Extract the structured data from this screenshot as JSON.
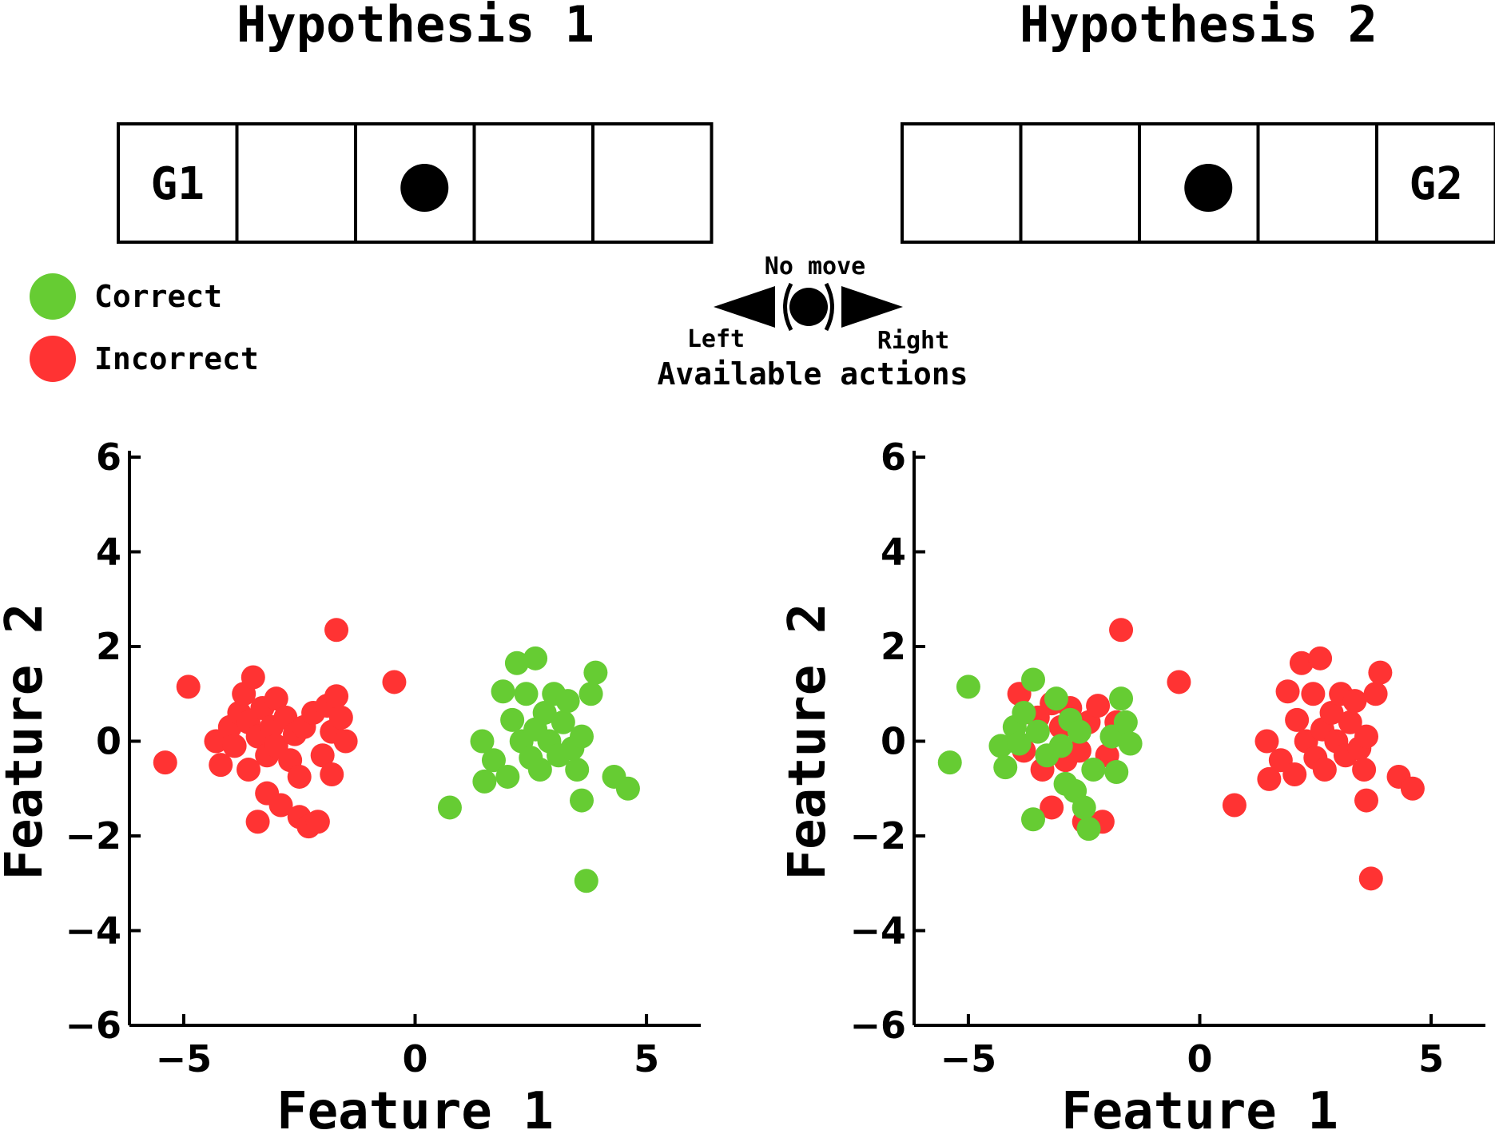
{
  "header": {
    "left_title": "Hypothesis 1",
    "right_title": "Hypothesis 2"
  },
  "gridworlds": [
    {
      "cells": 5,
      "goal_label": "G1",
      "goal_cell": 0,
      "agent_cell": 2
    },
    {
      "cells": 5,
      "goal_label": "G2",
      "goal_cell": 4,
      "agent_cell": 2
    }
  ],
  "legend": {
    "items": [
      {
        "label": "Correct",
        "color": "#66cc33"
      },
      {
        "label": "Incorrect",
        "color": "#ff3333"
      }
    ]
  },
  "actions": {
    "title": "Available actions",
    "no_move": "No move",
    "left": "Left",
    "right": "Right"
  },
  "chart_data": [
    {
      "type": "scatter",
      "xlabel": "Feature 1",
      "ylabel": "Feature 2",
      "xlim": [
        -6,
        6
      ],
      "ylim": [
        -6,
        6
      ],
      "xticks": [
        -5,
        0,
        5
      ],
      "yticks": [
        6,
        4,
        2,
        0,
        -2,
        -4,
        -6
      ],
      "series": [
        {
          "color": "#ff3333",
          "points": [
            [
              -5.4,
              -0.45
            ],
            [
              -4.9,
              1.15
            ],
            [
              -4.3,
              0.0
            ],
            [
              -4.2,
              -0.5
            ],
            [
              -4.0,
              0.3
            ],
            [
              -3.9,
              -0.1
            ],
            [
              -3.8,
              0.6
            ],
            [
              -3.7,
              1.0
            ],
            [
              -3.6,
              0.4
            ],
            [
              -3.6,
              -0.6
            ],
            [
              -3.5,
              1.35
            ],
            [
              -3.4,
              0.1
            ],
            [
              -3.4,
              -1.7
            ],
            [
              -3.3,
              0.7
            ],
            [
              -3.2,
              -0.3
            ],
            [
              -3.2,
              -1.1
            ],
            [
              -3.1,
              0.3
            ],
            [
              -3.0,
              -0.1
            ],
            [
              -3.0,
              0.9
            ],
            [
              -2.9,
              -1.35
            ],
            [
              -2.8,
              0.5
            ],
            [
              -2.7,
              -0.4
            ],
            [
              -2.6,
              0.15
            ],
            [
              -2.5,
              -0.75
            ],
            [
              -2.5,
              -1.6
            ],
            [
              -2.4,
              0.3
            ],
            [
              -2.3,
              -1.8
            ],
            [
              -2.2,
              0.6
            ],
            [
              -2.1,
              -1.7
            ],
            [
              -2.0,
              -0.3
            ],
            [
              -1.9,
              0.75
            ],
            [
              -1.8,
              0.2
            ],
            [
              -1.8,
              -0.7
            ],
            [
              -1.7,
              0.95
            ],
            [
              -1.6,
              0.5
            ],
            [
              -1.5,
              0.0
            ],
            [
              -1.7,
              2.35
            ],
            [
              -0.45,
              1.25
            ]
          ]
        },
        {
          "color": "#66cc33",
          "points": [
            [
              0.75,
              -1.4
            ],
            [
              1.45,
              0.0
            ],
            [
              1.5,
              -0.85
            ],
            [
              1.7,
              -0.4
            ],
            [
              1.9,
              1.05
            ],
            [
              2.0,
              -0.75
            ],
            [
              2.1,
              0.45
            ],
            [
              2.2,
              1.65
            ],
            [
              2.3,
              0.0
            ],
            [
              2.4,
              1.0
            ],
            [
              2.5,
              -0.35
            ],
            [
              2.6,
              1.75
            ],
            [
              2.6,
              0.25
            ],
            [
              2.7,
              -0.6
            ],
            [
              2.8,
              0.6
            ],
            [
              2.9,
              0.0
            ],
            [
              3.0,
              1.0
            ],
            [
              3.1,
              -0.3
            ],
            [
              3.2,
              0.4
            ],
            [
              3.3,
              0.85
            ],
            [
              3.4,
              -0.15
            ],
            [
              3.5,
              -0.6
            ],
            [
              3.6,
              0.1
            ],
            [
              3.6,
              -1.25
            ],
            [
              3.7,
              -2.95
            ],
            [
              3.8,
              1.0
            ],
            [
              3.9,
              1.45
            ],
            [
              4.3,
              -0.75
            ],
            [
              4.6,
              -1.0
            ]
          ]
        }
      ]
    },
    {
      "type": "scatter",
      "xlabel": "Feature 1",
      "ylabel": "Feature 2",
      "xlim": [
        -6,
        6
      ],
      "ylim": [
        -6,
        6
      ],
      "xticks": [
        -5,
        0,
        5
      ],
      "yticks": [
        6,
        4,
        2,
        0,
        -2,
        -4,
        -6
      ],
      "series": [
        {
          "color": "#ff3333",
          "points": [
            [
              -3.9,
              1.0
            ],
            [
              -3.8,
              -0.2
            ],
            [
              -3.5,
              0.5
            ],
            [
              -3.4,
              -0.6
            ],
            [
              -3.2,
              0.8
            ],
            [
              -3.2,
              -1.4
            ],
            [
              -3.0,
              0.3
            ],
            [
              -2.9,
              -0.4
            ],
            [
              -2.8,
              0.7
            ],
            [
              -2.6,
              -0.2
            ],
            [
              -2.5,
              -1.7
            ],
            [
              -2.4,
              0.4
            ],
            [
              -2.2,
              0.75
            ],
            [
              -2.1,
              -1.7
            ],
            [
              -2.0,
              -0.3
            ],
            [
              -1.8,
              0.4
            ],
            [
              -1.7,
              2.35
            ],
            [
              -0.45,
              1.25
            ],
            [
              0.75,
              -1.35
            ],
            [
              1.45,
              0.0
            ],
            [
              1.5,
              -0.8
            ],
            [
              1.75,
              -0.4
            ],
            [
              1.9,
              1.05
            ],
            [
              2.05,
              -0.7
            ],
            [
              2.1,
              0.45
            ],
            [
              2.2,
              1.65
            ],
            [
              2.3,
              0.0
            ],
            [
              2.45,
              1.0
            ],
            [
              2.5,
              -0.35
            ],
            [
              2.6,
              1.75
            ],
            [
              2.65,
              0.25
            ],
            [
              2.7,
              -0.6
            ],
            [
              2.85,
              0.6
            ],
            [
              2.95,
              0.0
            ],
            [
              3.05,
              1.0
            ],
            [
              3.15,
              -0.3
            ],
            [
              3.25,
              0.4
            ],
            [
              3.35,
              0.85
            ],
            [
              3.45,
              -0.15
            ],
            [
              3.55,
              -0.6
            ],
            [
              3.6,
              0.1
            ],
            [
              3.6,
              -1.25
            ],
            [
              3.7,
              -2.9
            ],
            [
              3.8,
              1.0
            ],
            [
              3.9,
              1.45
            ],
            [
              4.3,
              -0.75
            ],
            [
              4.6,
              -1.0
            ]
          ]
        },
        {
          "color": "#66cc33",
          "points": [
            [
              -5.4,
              -0.45
            ],
            [
              -5.0,
              1.15
            ],
            [
              -4.3,
              -0.1
            ],
            [
              -4.2,
              -0.55
            ],
            [
              -4.0,
              0.3
            ],
            [
              -3.9,
              -0.05
            ],
            [
              -3.8,
              0.6
            ],
            [
              -3.6,
              1.3
            ],
            [
              -3.6,
              -1.65
            ],
            [
              -3.5,
              0.2
            ],
            [
              -3.3,
              -0.3
            ],
            [
              -3.1,
              0.9
            ],
            [
              -3.0,
              -0.1
            ],
            [
              -2.9,
              -0.9
            ],
            [
              -2.8,
              0.45
            ],
            [
              -2.7,
              -1.05
            ],
            [
              -2.6,
              0.2
            ],
            [
              -2.5,
              -1.4
            ],
            [
              -2.4,
              -1.85
            ],
            [
              -2.3,
              -0.6
            ],
            [
              -1.9,
              0.1
            ],
            [
              -1.8,
              -0.65
            ],
            [
              -1.7,
              0.9
            ],
            [
              -1.6,
              0.4
            ],
            [
              -1.5,
              -0.05
            ]
          ]
        }
      ]
    }
  ]
}
